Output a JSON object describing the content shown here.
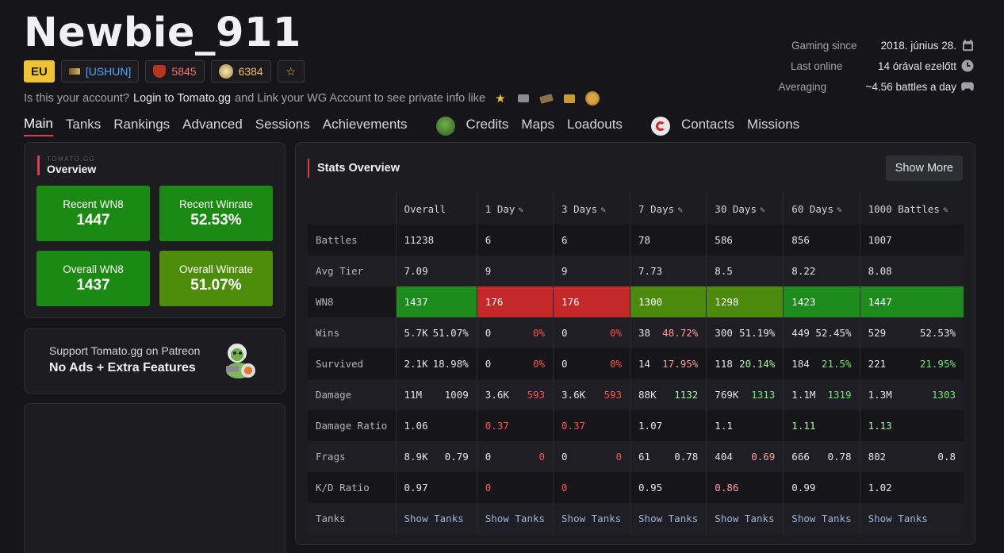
{
  "player": {
    "name": "Newbie_911",
    "region": "EU",
    "clan": "[USHUN]",
    "rating": "5845",
    "medals": "6384"
  },
  "meta": [
    {
      "label": "Gaming since",
      "value": "2018. június 28.",
      "icon": "calendar-icon"
    },
    {
      "label": "Last online",
      "value": "14 órával ezelőtt",
      "icon": "clock-icon"
    },
    {
      "label": "Averaging",
      "value": "~4.56 battles a day",
      "icon": "gamepad-icon"
    }
  ],
  "claim": {
    "prefix": "Is this your account?",
    "login": "Login to Tomato.gg",
    "middle": "and Link your WG Account to see private info like"
  },
  "nav": {
    "tabs": [
      "Main",
      "Tanks",
      "Rankings",
      "Advanced",
      "Sessions",
      "Achievements"
    ],
    "tabs2": [
      "Credits",
      "Maps",
      "Loadouts"
    ],
    "tabs3": [
      "Contacts",
      "Missions"
    ],
    "active": "Main"
  },
  "overview": {
    "brand": "TOMATO.GG",
    "title": "Overview",
    "stats": [
      {
        "label": "Recent WN8",
        "value": "1447",
        "color": "#1a8a12"
      },
      {
        "label": "Recent Winrate",
        "value": "52.53%",
        "color": "#1a8a12"
      },
      {
        "label": "Overall WN8",
        "value": "1437",
        "color": "#1a8a12"
      },
      {
        "label": "Overall Winrate",
        "value": "51.07%",
        "color": "#4e8d0c"
      }
    ]
  },
  "patreon": {
    "line1": "Support Tomato.gg on Patreon",
    "line2": "No Ads + Extra Features"
  },
  "stats_overview": {
    "title": "Stats Overview",
    "show_more": "Show More",
    "columns": [
      "Overall",
      "1 Day",
      "3 Days",
      "7 Days",
      "30 Days",
      "60 Days",
      "1000 Battles"
    ],
    "rows": {
      "battles": {
        "label": "Battles",
        "values": [
          "11238",
          "6",
          "6",
          "78",
          "586",
          "856",
          "1007"
        ]
      },
      "avg_tier": {
        "label": "Avg Tier",
        "values": [
          "7.09",
          "9",
          "9",
          "7.73",
          "8.5",
          "8.22",
          "8.08"
        ]
      },
      "wn8": {
        "label": "WN8",
        "values": [
          "1437",
          "176",
          "176",
          "1300",
          "1298",
          "1423",
          "1447"
        ]
      },
      "wins": {
        "label": "Wins",
        "counts": [
          "5.7K",
          "0",
          "0",
          "38",
          "300",
          "449",
          "529"
        ],
        "rates": [
          "51.07%",
          "0%",
          "0%",
          "48.72%",
          "51.19%",
          "52.45%",
          "52.53%"
        ]
      },
      "survived": {
        "label": "Survived",
        "counts": [
          "2.1K",
          "0",
          "0",
          "14",
          "118",
          "184",
          "221"
        ],
        "rates": [
          "18.98%",
          "0%",
          "0%",
          "17.95%",
          "20.14%",
          "21.5%",
          "21.95%"
        ]
      },
      "damage": {
        "label": "Damage",
        "totals": [
          "11M",
          "3.6K",
          "3.6K",
          "88K",
          "769K",
          "1.1M",
          "1.3M"
        ],
        "avgs": [
          "1009",
          "593",
          "593",
          "1132",
          "1313",
          "1319",
          "1303"
        ]
      },
      "damage_ratio": {
        "label": "Damage Ratio",
        "values": [
          "1.06",
          "0.37",
          "0.37",
          "1.07",
          "1.1",
          "1.11",
          "1.13"
        ]
      },
      "frags": {
        "label": "Frags",
        "totals": [
          "8.9K",
          "0",
          "0",
          "61",
          "404",
          "666",
          "802"
        ],
        "avgs": [
          "0.79",
          "0",
          "0",
          "0.78",
          "0.69",
          "0.78",
          "0.8"
        ]
      },
      "kd_ratio": {
        "label": "K/D Ratio",
        "values": [
          "0.97",
          "0",
          "0",
          "0.95",
          "0.86",
          "0.99",
          "1.02"
        ]
      },
      "tanks": {
        "label": "Tanks",
        "link": "Show Tanks"
      }
    }
  }
}
